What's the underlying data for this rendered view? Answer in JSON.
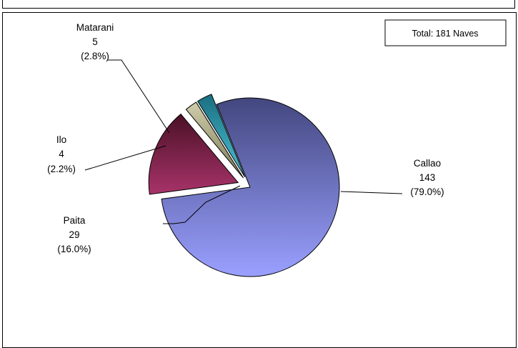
{
  "chart_data": {
    "type": "pie",
    "title": "",
    "total_label": "Total: 181 Naves",
    "slices": [
      {
        "name": "Callao",
        "value": 143,
        "percent": "79.0%",
        "color": "#7f86d8",
        "exploded": false
      },
      {
        "name": "Paita",
        "value": 29,
        "percent": "16.0%",
        "color": "#8a2c55",
        "exploded": true
      },
      {
        "name": "Ilo",
        "value": 4,
        "percent": "2.2%",
        "color": "#b6b48e",
        "exploded": true
      },
      {
        "name": "Matarani",
        "value": 5,
        "percent": "2.8%",
        "color": "#3aa3b6",
        "exploded": true
      }
    ]
  }
}
